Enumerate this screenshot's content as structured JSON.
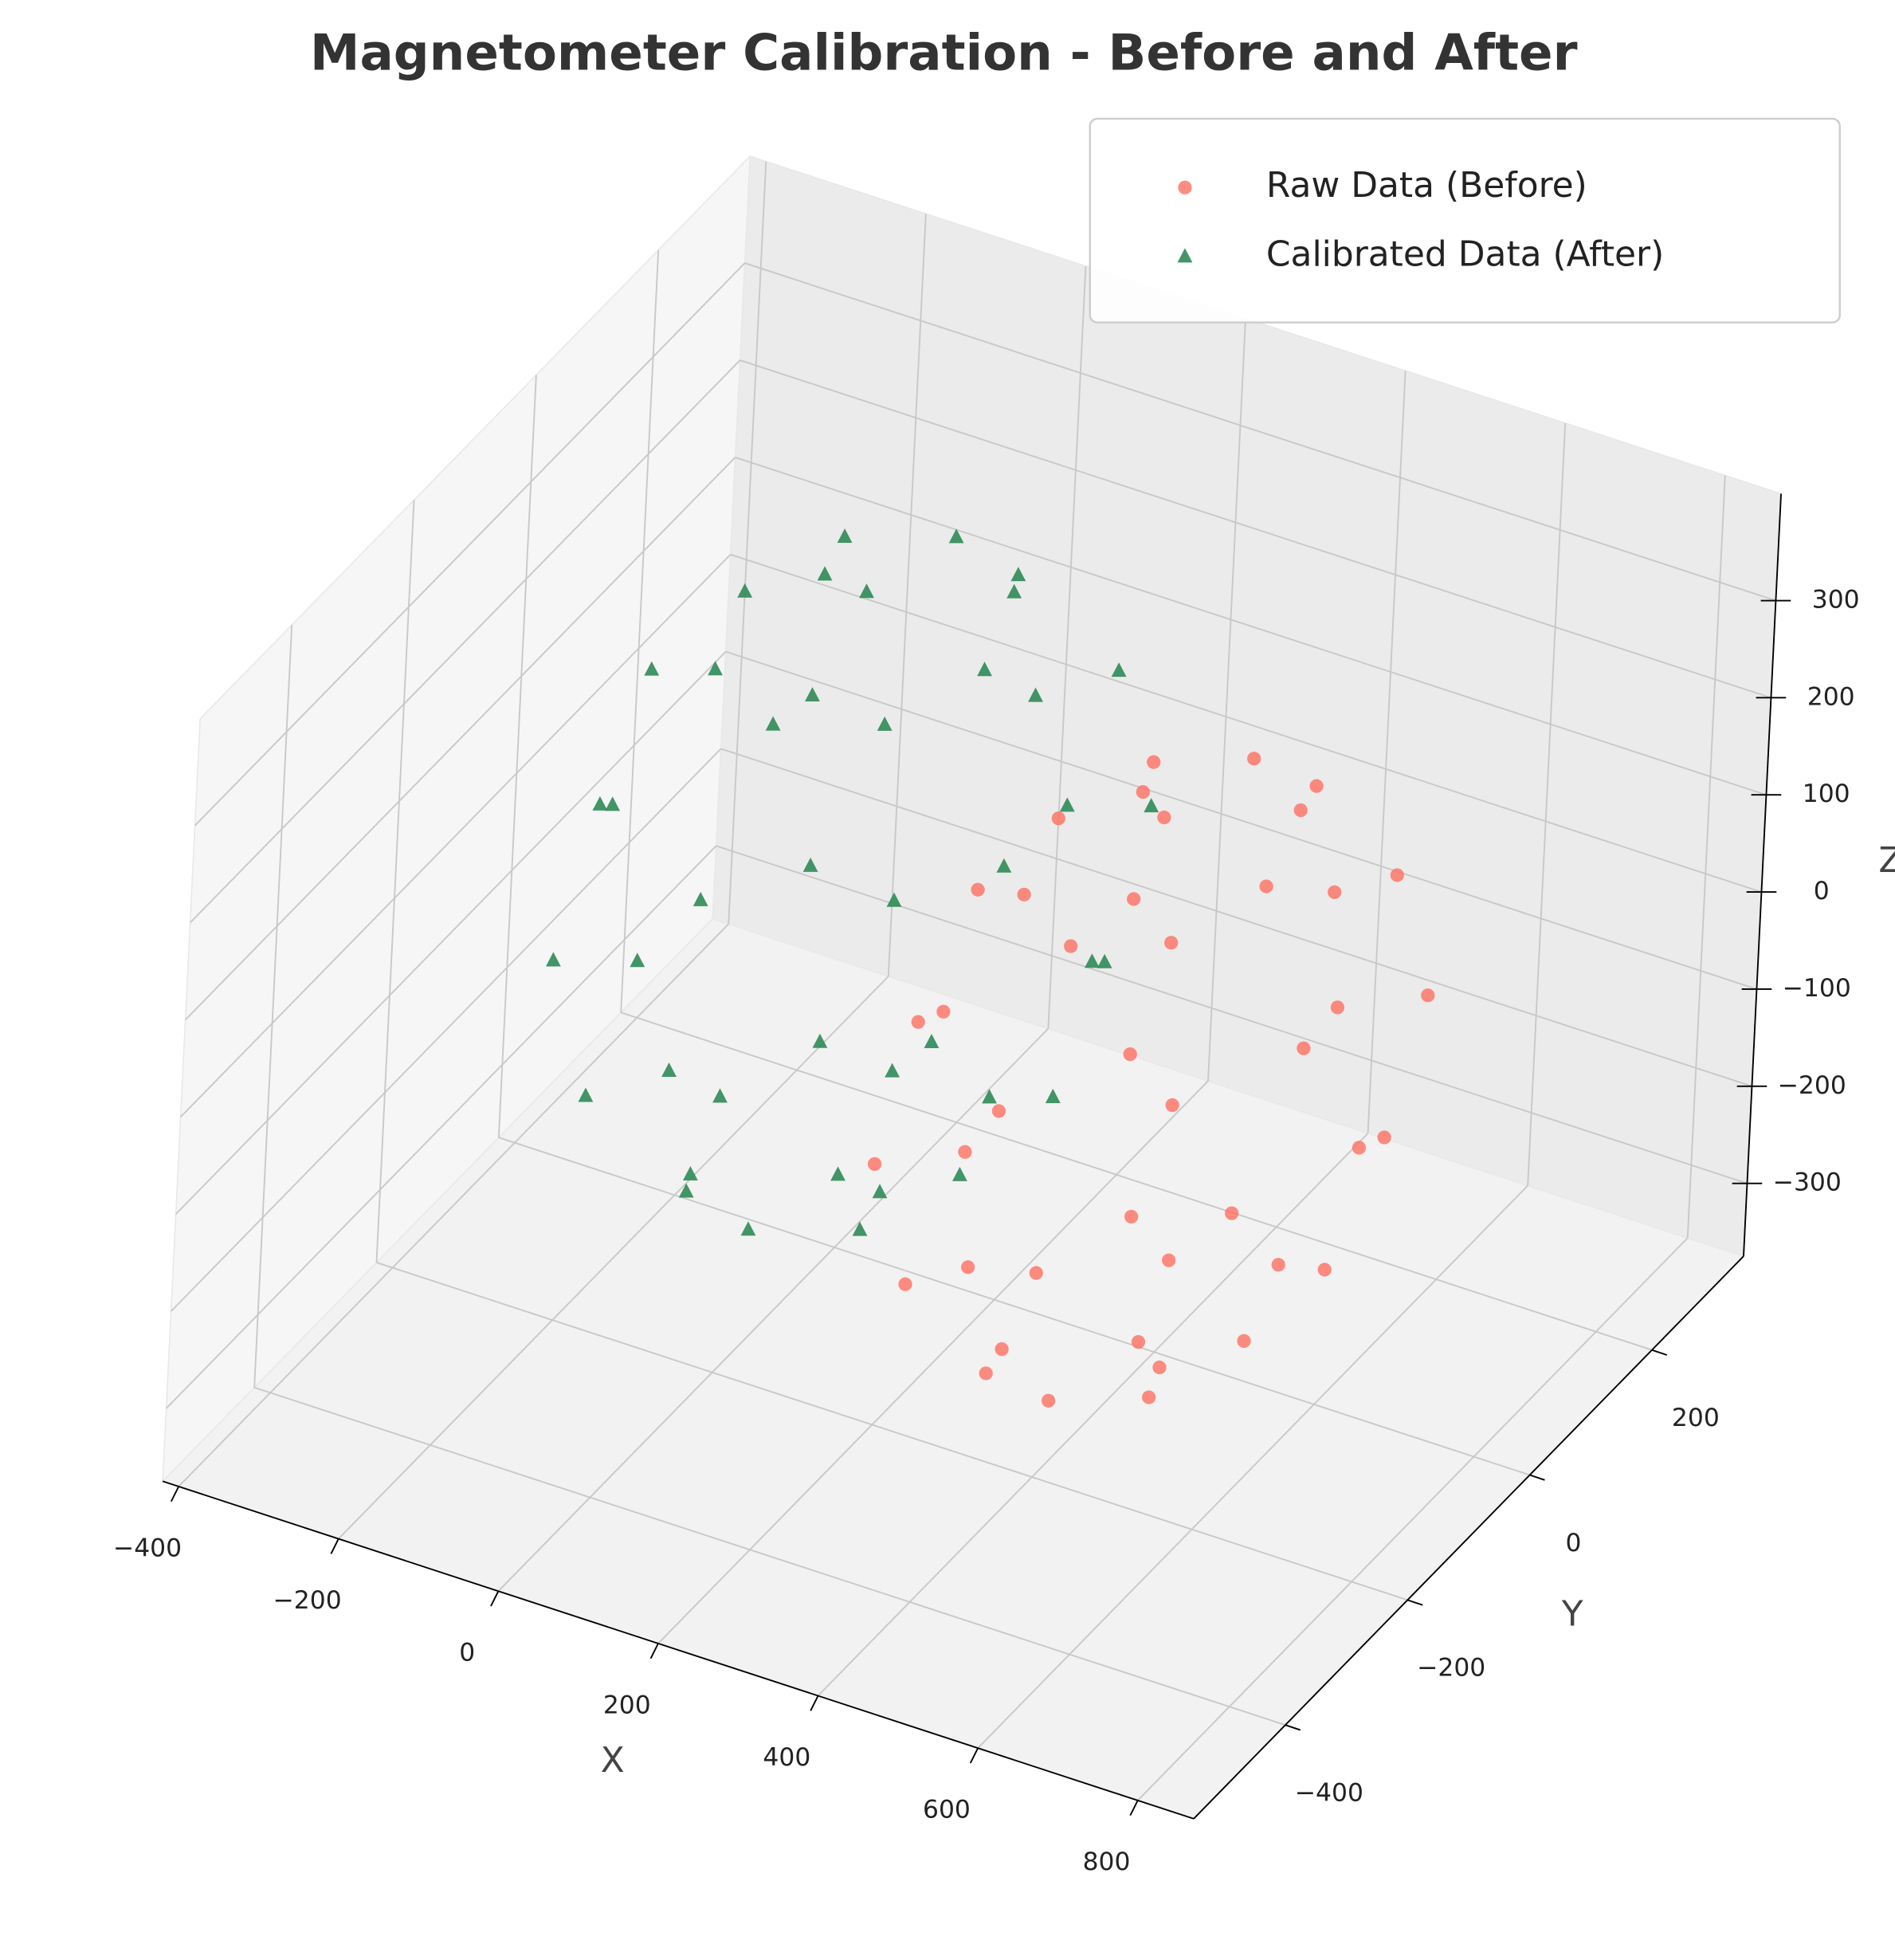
{
  "chart_data": {
    "type": "scatter3d",
    "title": "Magnetometer Calibration - Before and After",
    "x_label": "X",
    "y_label": "Y",
    "z_label": "Z",
    "xlim": [
      -420,
      870
    ],
    "ylim": [
      -550,
      350
    ],
    "zlim": [
      -375,
      410
    ],
    "xticks": [
      {
        "value": -400,
        "label": "−400"
      },
      {
        "value": -200,
        "label": "−200"
      },
      0,
      200,
      400,
      600,
      800
    ],
    "yticks": [
      {
        "value": -400,
        "label": "−400"
      },
      {
        "value": -200,
        "label": "−200"
      },
      0,
      200
    ],
    "zticks": [
      {
        "value": -300,
        "label": "−300"
      },
      {
        "value": -200,
        "label": "−200"
      },
      {
        "value": -100,
        "label": "−100"
      },
      0,
      100,
      200,
      300
    ],
    "grid": true,
    "legend": "upper right",
    "series": [
      {
        "name": "Calibrated Data (After)",
        "color": "#2e8b57",
        "marker": "triangle",
        "x": [
          300,
          212,
          0,
          -212,
          -300,
          -212,
          0,
          212,
          260,
          184,
          0,
          -184,
          -260,
          -184,
          0,
          184,
          260,
          184,
          0,
          -184,
          -260,
          -184,
          0,
          184,
          150,
          106,
          0,
          -106,
          -150,
          -106,
          0,
          106,
          150,
          106,
          0,
          -106,
          -150,
          -106,
          0,
          106,
          0,
          0
        ],
        "y": [
          0,
          212,
          300,
          212,
          0,
          -212,
          -300,
          -212,
          0,
          184,
          260,
          184,
          0,
          -184,
          -260,
          -184,
          0,
          184,
          260,
          184,
          0,
          -184,
          -260,
          -184,
          0,
          106,
          150,
          106,
          0,
          -106,
          -150,
          -106,
          0,
          106,
          150,
          106,
          0,
          -106,
          -150,
          -106,
          0,
          0
        ],
        "z": [
          0,
          0,
          0,
          0,
          0,
          0,
          0,
          0,
          150,
          150,
          150,
          150,
          150,
          150,
          150,
          150,
          -150,
          -150,
          -150,
          -150,
          -150,
          -150,
          -150,
          -150,
          260,
          260,
          260,
          260,
          260,
          260,
          260,
          260,
          -260,
          -260,
          -260,
          -260,
          -260,
          -260,
          -260,
          -260,
          300,
          -300
        ]
      },
      {
        "name": "Raw Data (Before)",
        "color": "#ff6f61",
        "marker": "circle",
        "x": [
          640,
          564,
          380,
          196,
          120,
          196,
          380,
          564,
          605,
          539,
          380,
          221,
          155,
          221,
          380,
          539,
          605,
          539,
          380,
          221,
          155,
          221,
          380,
          539,
          510,
          472,
          380,
          288,
          250,
          288,
          380,
          472,
          510,
          472,
          380,
          288,
          250,
          288,
          380,
          472,
          380,
          380
        ],
        "y": [
          0,
          212,
          300,
          212,
          0,
          -212,
          -300,
          -212,
          0,
          184,
          260,
          184,
          0,
          -184,
          -260,
          -184,
          0,
          184,
          260,
          184,
          0,
          -184,
          -260,
          -184,
          0,
          106,
          150,
          106,
          0,
          -106,
          -150,
          -106,
          0,
          106,
          150,
          106,
          0,
          -106,
          -150,
          -106,
          0,
          0
        ],
        "z": [
          -100,
          -100,
          -100,
          -100,
          -100,
          -100,
          -100,
          -100,
          35,
          35,
          35,
          35,
          35,
          35,
          35,
          35,
          -235,
          -235,
          -235,
          -235,
          -235,
          -235,
          -235,
          -235,
          134,
          134,
          134,
          134,
          134,
          134,
          134,
          134,
          -334,
          -334,
          -334,
          -334,
          -334,
          -334,
          -334,
          -334,
          170,
          -370
        ]
      }
    ]
  }
}
